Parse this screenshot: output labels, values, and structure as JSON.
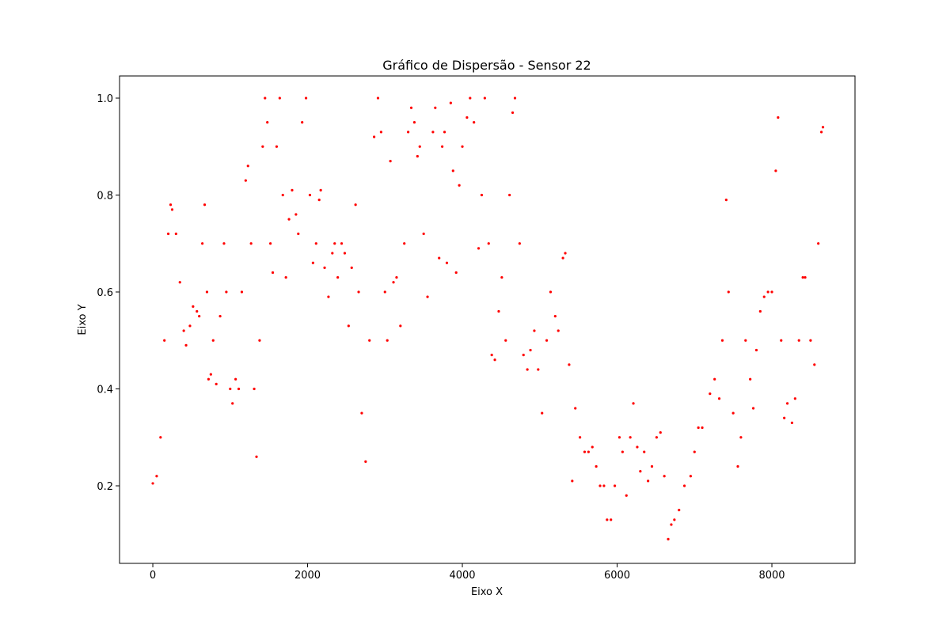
{
  "chart_data": {
    "type": "scatter",
    "title": "Gráfico de Dispersão - Sensor 22",
    "x_label": "Eixo X",
    "y_label": "Eixo Y",
    "color": "#ff0000",
    "xlim": [
      -430,
      9074
    ],
    "ylim": [
      0.04,
      1.0457
    ],
    "xticks": [
      0,
      2000,
      4000,
      6000,
      8000
    ],
    "yticks": [
      0.2,
      0.4,
      0.6,
      0.8,
      {
        "value": 1,
        "label": "1.0"
      }
    ],
    "x": [
      0,
      50,
      100,
      150,
      200,
      230,
      250,
      300,
      350,
      400,
      430,
      480,
      520,
      570,
      600,
      640,
      670,
      700,
      720,
      750,
      780,
      820,
      870,
      920,
      950,
      1000,
      1030,
      1070,
      1110,
      1150,
      1200,
      1230,
      1270,
      1310,
      1340,
      1380,
      1420,
      1450,
      1480,
      1520,
      1550,
      1600,
      1640,
      1680,
      1720,
      1760,
      1800,
      1850,
      1880,
      1930,
      1980,
      2030,
      2070,
      2110,
      2150,
      2170,
      2220,
      2270,
      2320,
      2350,
      2390,
      2440,
      2480,
      2530,
      2570,
      2620,
      2660,
      2700,
      2750,
      2800,
      2860,
      2910,
      2950,
      3000,
      3030,
      3070,
      3110,
      3150,
      3200,
      3250,
      3300,
      3340,
      3380,
      3420,
      3450,
      3500,
      3550,
      3620,
      3650,
      3700,
      3740,
      3770,
      3800,
      3850,
      3880,
      3920,
      3960,
      4000,
      4060,
      4100,
      4150,
      4210,
      4250,
      4290,
      4340,
      4380,
      4420,
      4470,
      4510,
      4560,
      4610,
      4650,
      4680,
      4740,
      4790,
      4840,
      4880,
      4930,
      4980,
      5030,
      5090,
      5140,
      5200,
      5240,
      5300,
      5330,
      5380,
      5420,
      5460,
      5520,
      5580,
      5630,
      5680,
      5730,
      5780,
      5830,
      5870,
      5920,
      5970,
      6030,
      6070,
      6120,
      6170,
      6210,
      6260,
      6300,
      6350,
      6400,
      6450,
      6510,
      6560,
      6610,
      6660,
      6700,
      6740,
      6800,
      6870,
      6950,
      7000,
      7050,
      7100,
      7200,
      7260,
      7320,
      7360,
      7410,
      7440,
      7500,
      7560,
      7600,
      7660,
      7720,
      7760,
      7800,
      7850,
      7900,
      7950,
      8000,
      8050,
      8080,
      8120,
      8160,
      8200,
      8260,
      8300,
      8350,
      8400,
      8430,
      8500,
      8550,
      8600,
      8640,
      8660
    ],
    "y": [
      0.205,
      0.22,
      0.3,
      0.5,
      0.72,
      0.78,
      0.77,
      0.72,
      0.62,
      0.52,
      0.49,
      0.53,
      0.57,
      0.56,
      0.55,
      0.7,
      0.78,
      0.6,
      0.42,
      0.43,
      0.5,
      0.41,
      0.55,
      0.7,
      0.6,
      0.4,
      0.37,
      0.42,
      0.4,
      0.6,
      0.83,
      0.86,
      0.7,
      0.4,
      0.26,
      0.5,
      0.9,
      1.0,
      0.95,
      0.7,
      0.64,
      0.9,
      1.0,
      0.8,
      0.63,
      0.75,
      0.81,
      0.76,
      0.72,
      0.95,
      1.0,
      0.8,
      0.66,
      0.7,
      0.79,
      0.81,
      0.65,
      0.59,
      0.68,
      0.7,
      0.63,
      0.7,
      0.68,
      0.53,
      0.65,
      0.78,
      0.6,
      0.35,
      0.25,
      0.5,
      0.92,
      1.0,
      0.93,
      0.6,
      0.5,
      0.87,
      0.62,
      0.63,
      0.53,
      0.7,
      0.93,
      0.98,
      0.95,
      0.88,
      0.9,
      0.72,
      0.59,
      0.93,
      0.98,
      0.67,
      0.9,
      0.93,
      0.66,
      0.99,
      0.85,
      0.64,
      0.82,
      0.9,
      0.96,
      1.0,
      0.95,
      0.69,
      0.8,
      1.0,
      0.7,
      0.47,
      0.46,
      0.56,
      0.63,
      0.5,
      0.8,
      0.97,
      1.0,
      0.7,
      0.47,
      0.44,
      0.48,
      0.52,
      0.44,
      0.35,
      0.5,
      0.6,
      0.55,
      0.52,
      0.67,
      0.68,
      0.45,
      0.21,
      0.36,
      0.3,
      0.27,
      0.27,
      0.28,
      0.24,
      0.2,
      0.2,
      0.13,
      0.13,
      0.2,
      0.3,
      0.27,
      0.18,
      0.3,
      0.37,
      0.28,
      0.23,
      0.27,
      0.21,
      0.24,
      0.3,
      0.31,
      0.22,
      0.09,
      0.12,
      0.13,
      0.15,
      0.2,
      0.22,
      0.27,
      0.32,
      0.32,
      0.39,
      0.42,
      0.38,
      0.5,
      0.79,
      0.6,
      0.35,
      0.24,
      0.3,
      0.5,
      0.42,
      0.36,
      0.48,
      0.56,
      0.59,
      0.6,
      0.6,
      0.85,
      0.96,
      0.5,
      0.34,
      0.37,
      0.33,
      0.38,
      0.5,
      0.63,
      0.63,
      0.5,
      0.45,
      0.7,
      0.93,
      0.94
    ]
  }
}
